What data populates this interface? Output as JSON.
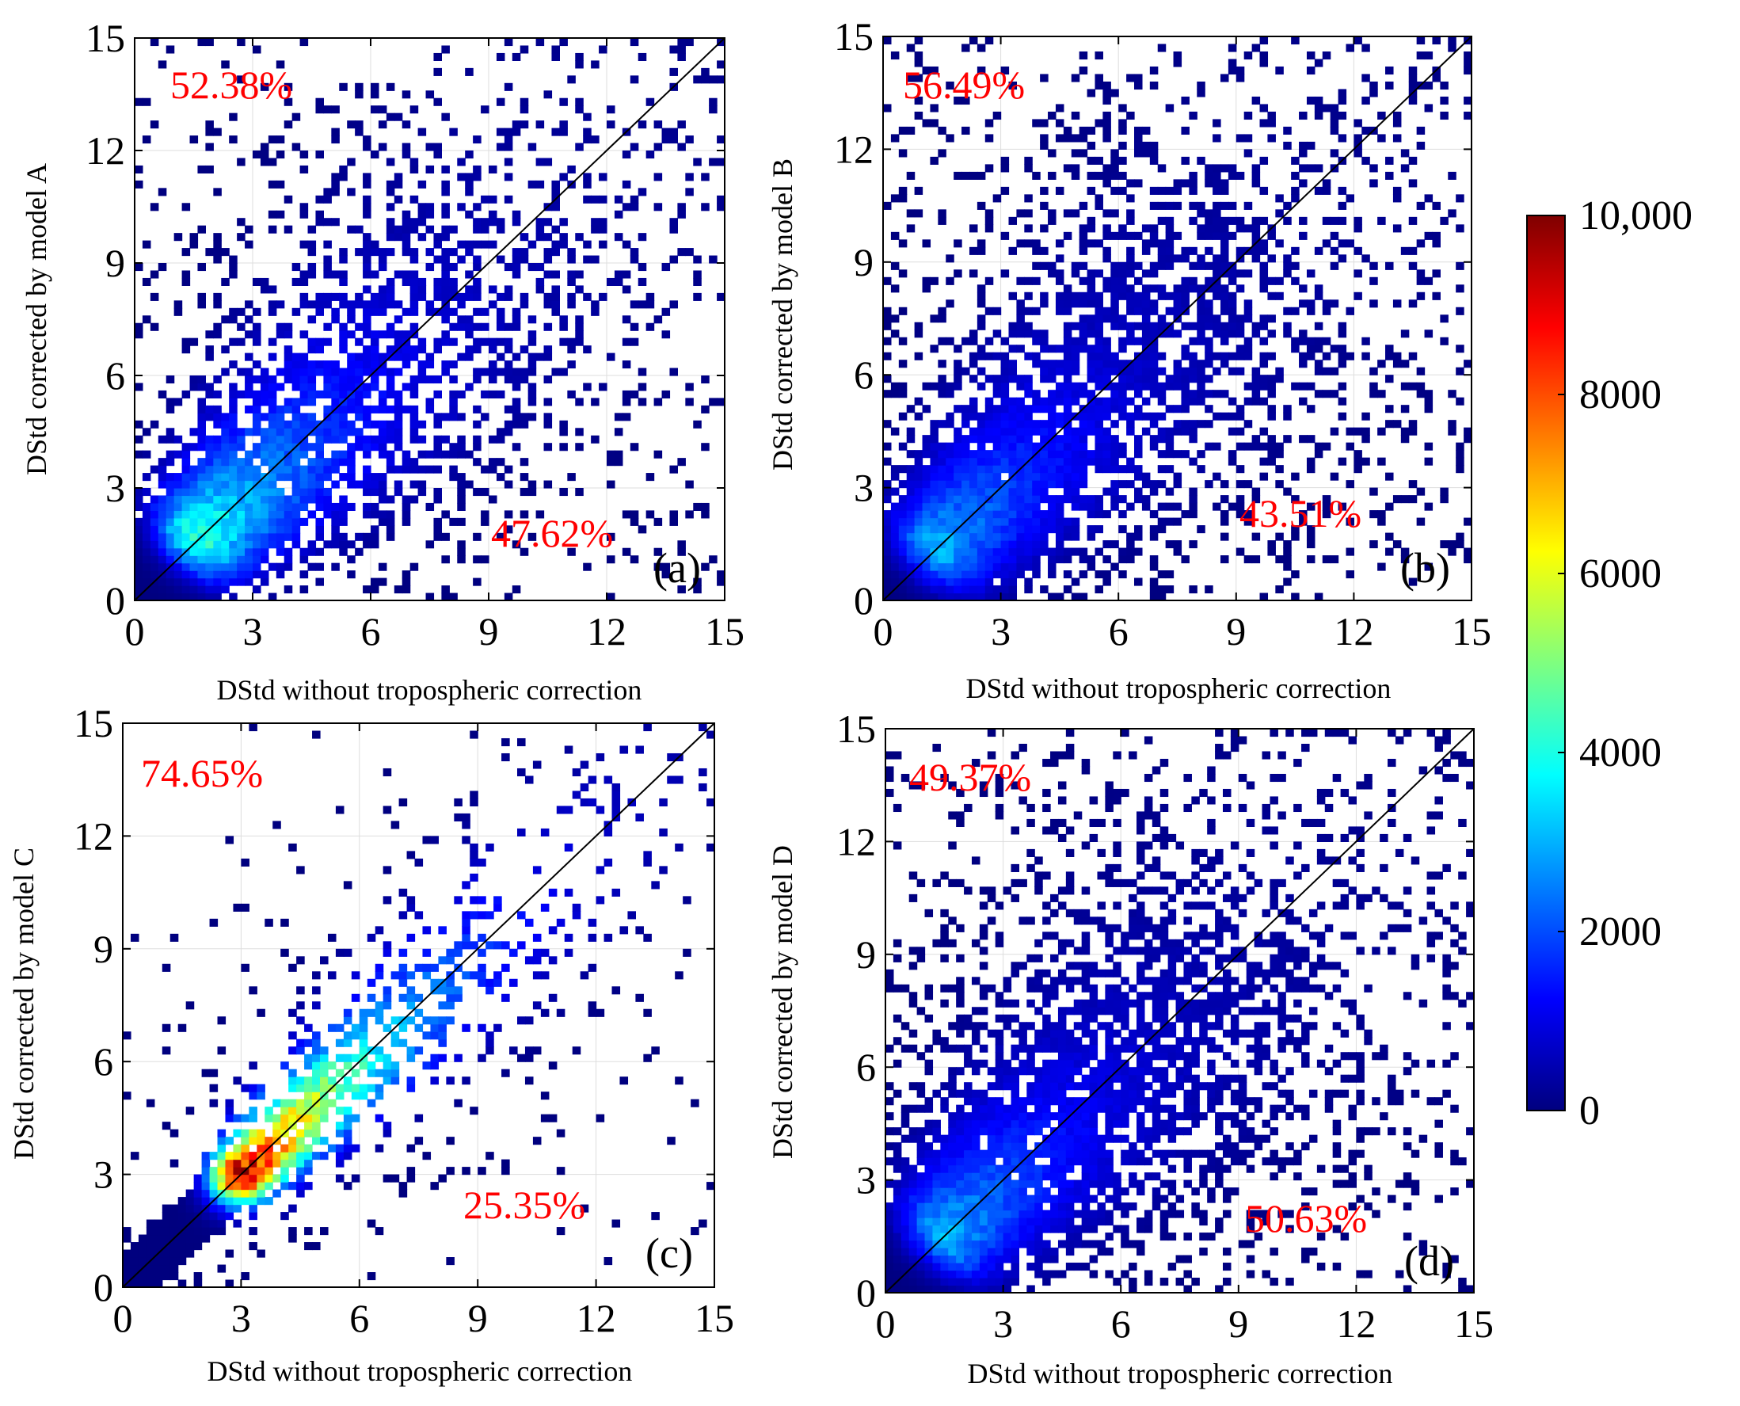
{
  "chart_data": [
    {
      "type": "heatmap",
      "panel_label": "(a)",
      "xlabel": "DStd without tropospheric correction",
      "ylabel": "DStd corrected by model A",
      "xlim": [
        0,
        15
      ],
      "ylim": [
        0,
        15
      ],
      "xticks": [
        "0",
        "3",
        "6",
        "9",
        "12",
        "15"
      ],
      "yticks": [
        "0",
        "3",
        "6",
        "9",
        "12",
        "15"
      ],
      "upper_pct": "52.38%",
      "lower_pct": "47.62%",
      "peak": [
        1.6,
        1.6
      ],
      "peak_count": 4200,
      "spread": 1.2,
      "tail": 0.6,
      "seed": 11,
      "grid": true,
      "diagonal": "y = x"
    },
    {
      "type": "heatmap",
      "panel_label": "(b)",
      "xlabel": "DStd without tropospheric correction",
      "ylabel": "DStd corrected by model B",
      "xlim": [
        0,
        15
      ],
      "ylim": [
        0,
        15
      ],
      "xticks": [
        "0",
        "3",
        "6",
        "9",
        "12",
        "15"
      ],
      "yticks": [
        "0",
        "3",
        "6",
        "9",
        "12",
        "15"
      ],
      "upper_pct": "56.49%",
      "lower_pct": "43.51%",
      "peak": [
        1.3,
        1.4
      ],
      "peak_count": 3000,
      "spread": 1.3,
      "tail": 0.7,
      "seed": 23,
      "grid": true,
      "diagonal": "y = x"
    },
    {
      "type": "heatmap",
      "panel_label": "(c)",
      "xlabel": "DStd without tropospheric correction",
      "ylabel": "DStd corrected by model C",
      "xlim": [
        0,
        15
      ],
      "ylim": [
        0,
        15
      ],
      "xticks": [
        "0",
        "3",
        "6",
        "9",
        "12",
        "15"
      ],
      "yticks": [
        "0",
        "3",
        "6",
        "9",
        "12",
        "15"
      ],
      "upper_pct": "74.65%",
      "lower_pct": "25.35%",
      "peak": [
        3.0,
        3.0
      ],
      "peak_count": 9500,
      "spread": 0.55,
      "tail": 0.25,
      "seed": 37,
      "grid": true,
      "diagonal": "y = x"
    },
    {
      "type": "heatmap",
      "panel_label": "(d)",
      "xlabel": "DStd without tropospheric correction",
      "ylabel": "DStd corrected by model D",
      "xlim": [
        0,
        15
      ],
      "ylim": [
        0,
        15
      ],
      "xticks": [
        "0",
        "3",
        "6",
        "9",
        "12",
        "15"
      ],
      "yticks": [
        "0",
        "3",
        "6",
        "9",
        "12",
        "15"
      ],
      "upper_pct": "49.37%",
      "lower_pct": "50.63%",
      "peak": [
        1.5,
        1.5
      ],
      "peak_count": 3000,
      "spread": 1.3,
      "tail": 0.8,
      "seed": 51,
      "grid": true,
      "diagonal": "y = x"
    }
  ],
  "colorbar": {
    "min": 0,
    "max": 10000,
    "tick_labels": [
      "10,000",
      "8000",
      "6000",
      "4000",
      "2000",
      "0"
    ],
    "tick_values": [
      10000,
      8000,
      6000,
      4000,
      2000,
      0
    ],
    "colormap": "jet",
    "colors": [
      "#00007f",
      "#0000ff",
      "#007fff",
      "#00ffff",
      "#7fff7f",
      "#ffff00",
      "#ff7f00",
      "#ff0000",
      "#7f0000"
    ]
  },
  "style": {
    "percent_color": "#ff0000",
    "empty_color": "#ffffff",
    "grid_color": "#dddddd"
  }
}
